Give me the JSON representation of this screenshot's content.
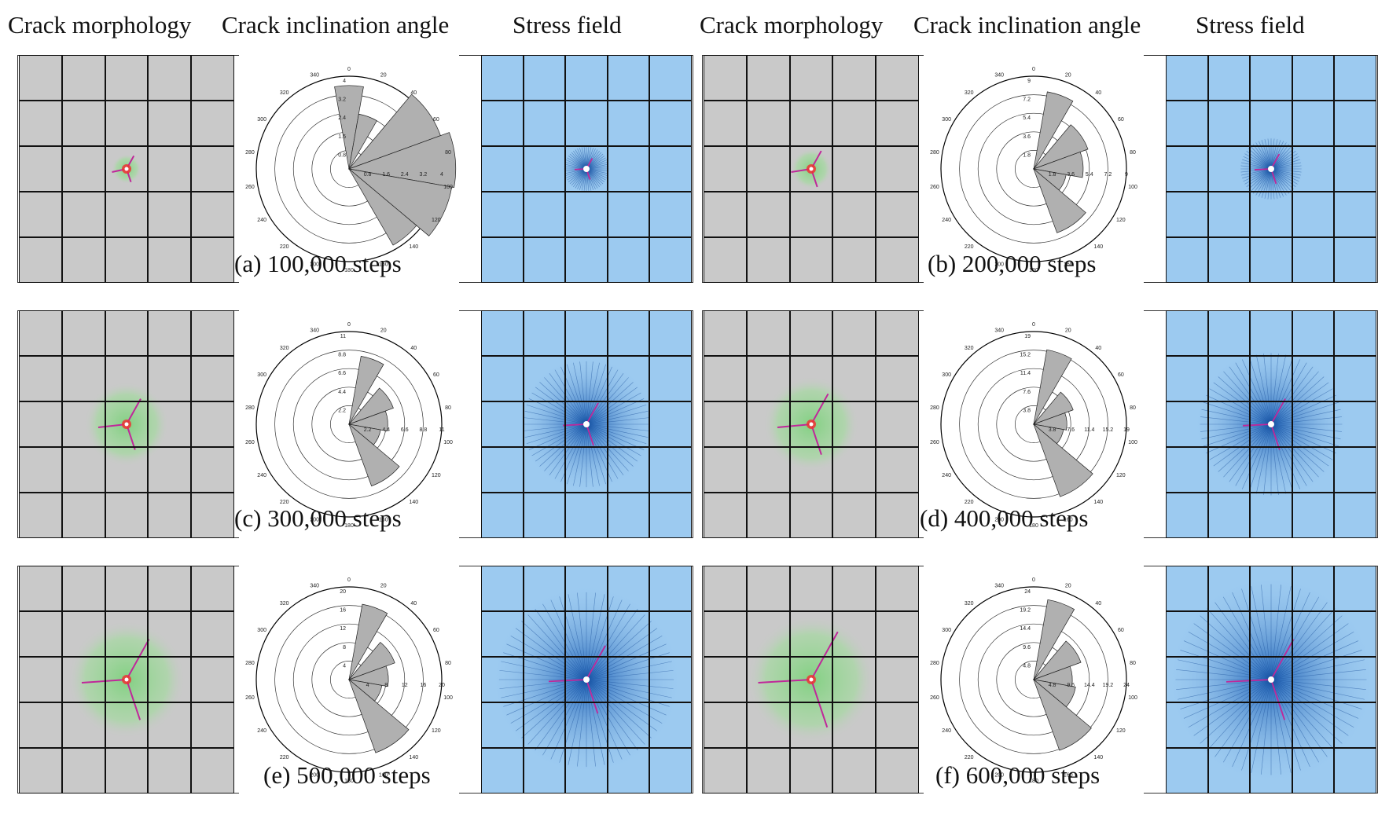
{
  "headers": {
    "left": {
      "morphology": "Crack morphology",
      "angle": "Crack inclination angle",
      "stress": "Stress field"
    },
    "right": {
      "morphology": "Crack morphology",
      "angle": "Crack inclination angle",
      "stress": "Stress field"
    }
  },
  "panels": [
    {
      "caption": "(a) 100,000 steps",
      "rmax": 4,
      "rings": [
        "0.8",
        "1.6",
        "2.4",
        "3.2",
        "4"
      ],
      "petals": [
        [
          350,
          10,
          3.6
        ],
        [
          10,
          30,
          2.4
        ],
        [
          40,
          70,
          4.2
        ],
        [
          70,
          100,
          4.6
        ],
        [
          100,
          130,
          4.5
        ],
        [
          130,
          150,
          3.8
        ]
      ],
      "crack": 0.15,
      "halo": 0.05
    },
    {
      "caption": "(b) 200,000 steps",
      "rmax": 9,
      "rings": [
        "1.8",
        "3.6",
        "5.4",
        "7.2",
        "9"
      ],
      "petals": [
        [
          10,
          30,
          7.6
        ],
        [
          40,
          70,
          5.6
        ],
        [
          70,
          100,
          4.8
        ],
        [
          100,
          130,
          3.2
        ],
        [
          130,
          160,
          6.6
        ]
      ],
      "crack": 0.25,
      "halo": 0.1
    },
    {
      "caption": "(c) 300,000 steps",
      "rmax": 11,
      "rings": [
        "2.2",
        "4.4",
        "6.6",
        "8.8",
        "11"
      ],
      "petals": [
        [
          10,
          30,
          8.2
        ],
        [
          40,
          70,
          5.6
        ],
        [
          70,
          100,
          4.6
        ],
        [
          100,
          130,
          3.8
        ],
        [
          130,
          160,
          7.8
        ]
      ],
      "crack": 0.4,
      "halo": 0.3
    },
    {
      "caption": "(d) 400,000 steps",
      "rmax": 19,
      "rings": [
        "3.8",
        "7.6",
        "11.4",
        "15.2",
        "19"
      ],
      "petals": [
        [
          10,
          30,
          15.5
        ],
        [
          40,
          70,
          8.6
        ],
        [
          70,
          100,
          6.8
        ],
        [
          100,
          130,
          6.2
        ],
        [
          130,
          160,
          15.8
        ]
      ],
      "crack": 0.5,
      "halo": 0.35
    },
    {
      "caption": "(e) 500,000 steps",
      "rmax": 20,
      "rings": [
        "4",
        "8",
        "12",
        "16",
        "20"
      ],
      "petals": [
        [
          10,
          30,
          16.5
        ],
        [
          40,
          70,
          10.5
        ],
        [
          70,
          100,
          8.5
        ],
        [
          100,
          130,
          7.2
        ],
        [
          130,
          160,
          16.8
        ]
      ],
      "crack": 0.7,
      "halo": 0.45
    },
    {
      "caption": "(f) 600,000 steps",
      "rmax": 24,
      "rings": [
        "4.8",
        "9.6",
        "14.4",
        "19.2",
        "24"
      ],
      "petals": [
        [
          10,
          30,
          21
        ],
        [
          40,
          70,
          13
        ],
        [
          70,
          100,
          10
        ],
        [
          100,
          130,
          11
        ],
        [
          130,
          160,
          19.5
        ]
      ],
      "crack": 0.85,
      "halo": 0.5
    }
  ],
  "angle_ticks": [
    "0",
    "20",
    "40",
    "60",
    "80",
    "100",
    "120",
    "140",
    "160",
    "180",
    "200",
    "220",
    "240",
    "260",
    "280",
    "300",
    "320",
    "340"
  ]
}
